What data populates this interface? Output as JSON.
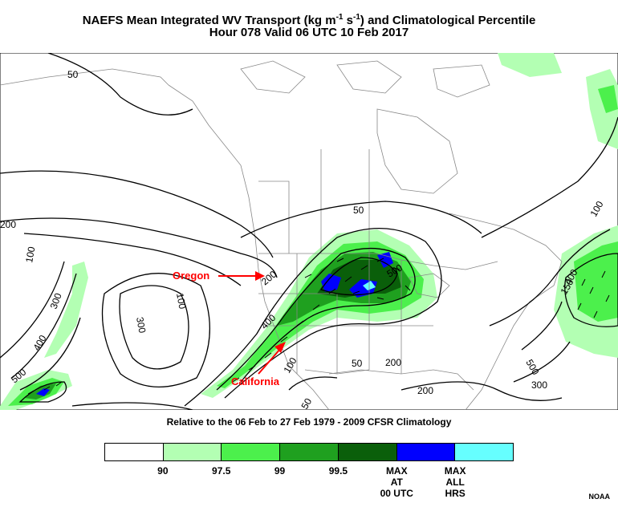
{
  "title_line1": "NAEFS Mean Integrated WV Transport (kg m",
  "title_sup1": "-1",
  "title_mid": " s",
  "title_sup2": "-1",
  "title_end": ") and Climatological Percentile",
  "title_line2": "Hour 078 Valid 06 UTC 10 Feb 2017",
  "subtitle": "Relative to the 06 Feb to 27 Feb 1979 - 2009 CFSR Climatology",
  "annotations": {
    "oregon": "Oregon",
    "california": "California"
  },
  "contour_labels": [
    "50",
    "100",
    "200",
    "300",
    "400",
    "500",
    "50",
    "100",
    "200",
    "300",
    "400",
    "500",
    "50",
    "100",
    "200",
    "300",
    "400",
    "500",
    "150",
    "50",
    "100",
    "200"
  ],
  "legend": {
    "colors": [
      "#ffffff",
      "#b3ffb3",
      "#4cf04c",
      "#1fa01f",
      "#0a5f0a",
      "#0000ff",
      "#66ffff"
    ],
    "labels": [
      "90",
      "97.5",
      "99",
      "99.5",
      "MAX\nAT\n00 UTC",
      "MAX\nALL\nHRS"
    ]
  },
  "credit": "NOAA"
}
